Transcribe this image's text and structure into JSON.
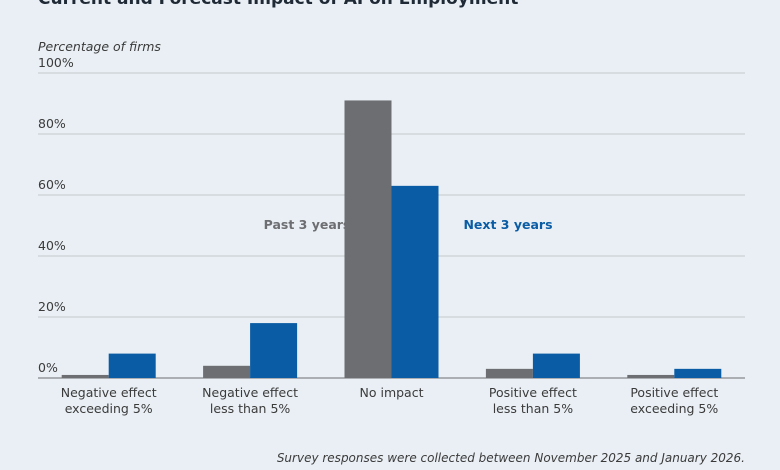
{
  "chart_data": {
    "type": "bar",
    "title": "Current and Forecast Impact of AI on Employment",
    "y_axis_label": "Percentage of firms",
    "categories": [
      "Negative effect\nexceeding 5%",
      "Negative effect\nless than 5%",
      "No impact",
      "Positive effect\nless than 5%",
      "Positive effect\nexceeding 5%"
    ],
    "series": [
      {
        "name": "Past 3 years",
        "color": "#6d6e71",
        "values": [
          1,
          4,
          91,
          3,
          1
        ]
      },
      {
        "name": "Next 3 years",
        "color": "#0a5ca5",
        "values": [
          8,
          18,
          63,
          8,
          3
        ]
      }
    ],
    "ylim": [
      0,
      100
    ],
    "yticks": [
      {
        "value": 0,
        "label": "0%"
      },
      {
        "value": 20,
        "label": "20%"
      },
      {
        "value": 40,
        "label": "40%"
      },
      {
        "value": 60,
        "label": "60%"
      },
      {
        "value": 80,
        "label": "80%"
      },
      {
        "value": 100,
        "label": "100%"
      }
    ],
    "grid": true,
    "note": "Survey responses were collected between November 2025 and January 2026."
  }
}
